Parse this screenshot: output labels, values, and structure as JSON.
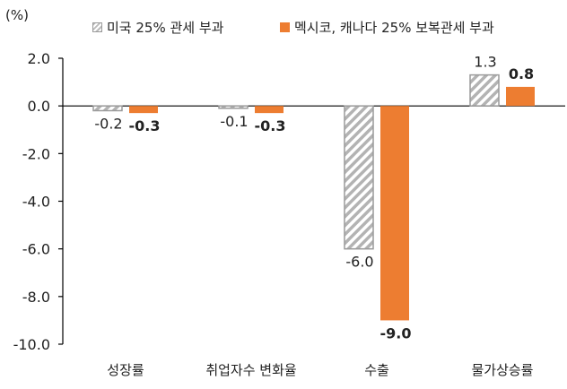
{
  "unit_label": "(%)",
  "colors": {
    "series1_hatch": "#A6A6A6",
    "series2": "#ED7D31"
  },
  "chart_data": {
    "type": "bar",
    "unit": "(%)",
    "categories": [
      "성장률",
      "취업자수 변화율",
      "수출",
      "물가상승률"
    ],
    "series": [
      {
        "name": "미국 25% 관세 부과",
        "values": [
          -0.2,
          -0.1,
          -6.0,
          1.3
        ],
        "style": "hatched",
        "color": "#A6A6A6"
      },
      {
        "name": "멕시코, 캐나다 25% 보복관세 부과",
        "values": [
          -0.3,
          -0.3,
          -9.0,
          0.8
        ],
        "style": "solid",
        "color": "#ED7D31"
      }
    ],
    "data_labels": [
      [
        "-0.2",
        "-0.1",
        "-6.0",
        "1.3"
      ],
      [
        "-0.3",
        "-0.3",
        "-9.0",
        "0.8"
      ]
    ],
    "y_ticks": [
      "2.0",
      "0.0",
      "-2.0",
      "-4.0",
      "-6.0",
      "-8.0",
      "-10.0"
    ],
    "ylim": [
      -10,
      2
    ],
    "grid": false,
    "legend_position": "top"
  }
}
